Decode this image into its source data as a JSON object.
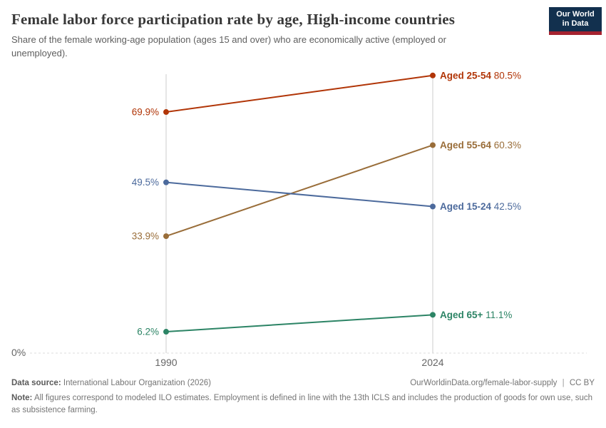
{
  "header": {
    "title": "Female labor force participation rate by age, High-income countries",
    "subtitle": "Share of the female working-age population (ages 15 and over) who are economically active (employed or unemployed).",
    "logo": {
      "line1": "Our World",
      "line2": "in Data",
      "bg_color": "#12304e",
      "accent_color": "#a52330"
    }
  },
  "chart_data": {
    "type": "line",
    "variant": "slope",
    "title": "Female labor force participation rate by age, High-income countries",
    "unit": "%",
    "x": [
      "1990",
      "2024"
    ],
    "series": [
      {
        "name": "Aged 25-54",
        "color": "#b13507",
        "values": [
          69.9,
          80.5
        ]
      },
      {
        "name": "Aged 55-64",
        "color": "#996d39",
        "values": [
          33.9,
          60.3
        ]
      },
      {
        "name": "Aged 15-24",
        "color": "#4c6a9c",
        "values": [
          49.5,
          42.5
        ]
      },
      {
        "name": "Aged 65+",
        "color": "#2c8465",
        "values": [
          6.2,
          11.1
        ]
      }
    ],
    "ylim": [
      0,
      80.5
    ],
    "y_baseline_label": "0%",
    "grid": "dashed zero line only",
    "legend_position": "end-of-line labels"
  },
  "footer": {
    "source_label": "Data source:",
    "source_value": "International Labour Organization (2026)",
    "url": "OurWorldinData.org/female-labor-supply",
    "separator": "|",
    "license": "CC BY",
    "note_label": "Note:",
    "note": "All figures correspond to modeled ILO estimates. Employment is defined in line with the 13th ICLS and includes the production of goods for own use, such as subsistence farming."
  }
}
